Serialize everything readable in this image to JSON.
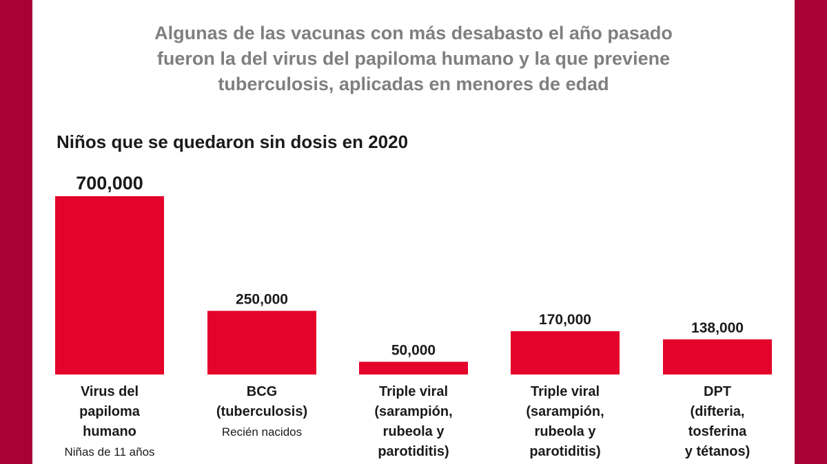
{
  "headline": "Algunas de las vacunas con más desabasto el año pasado\nfueron la del virus del papiloma humano y la que previene\ntuberculosis, aplicadas en menores de edad",
  "colors": {
    "background": "#a80037",
    "bar": "#e4032b",
    "headline": "#7f7f7f",
    "text": "#1a1a1a"
  },
  "chart_data": {
    "type": "bar",
    "title": "Niños que se quedaron sin dosis en 2020",
    "xlabel": "",
    "ylabel": "",
    "ylim": [
      0,
      700000
    ],
    "grid": false,
    "categories": [
      "Virus del\npapiloma\nhumano",
      "BCG\n(tuberculosis)",
      "Triple viral\n(sarampión,\nrubeola y\nparotiditis)",
      "Triple viral\n(sarampión,\nrubeola y\nparotiditis)",
      "DPT\n(difteria,\ntosferina\ny tétanos)"
    ],
    "subcategories": [
      "Niñas de 11 años",
      "Recién nacidos",
      "",
      "",
      ""
    ],
    "values": [
      700000,
      250000,
      50000,
      170000,
      138000
    ],
    "value_labels": [
      "700,000",
      "250,000",
      "50,000",
      "170,000",
      "138,000"
    ]
  }
}
